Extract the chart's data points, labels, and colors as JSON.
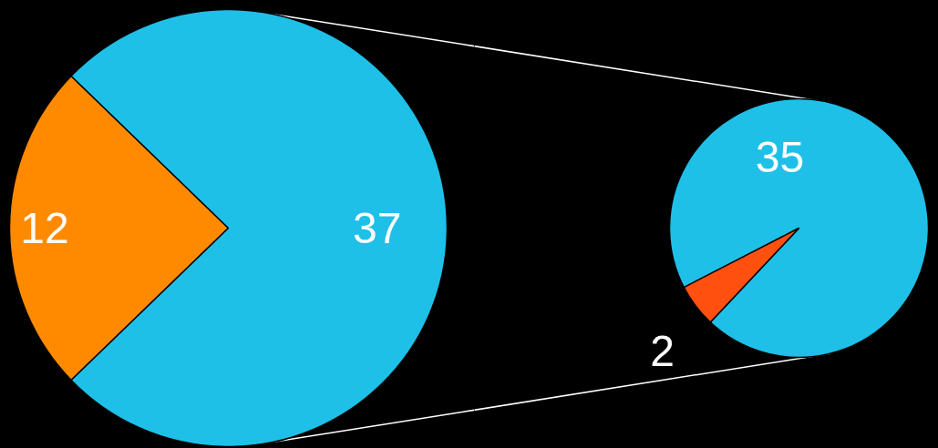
{
  "chart_data": [
    {
      "type": "pie",
      "categories": [
        null,
        null
      ],
      "values": [
        12,
        37
      ],
      "colors": [
        "#ff8a00",
        "#1ec0e8"
      ],
      "data_labels": true
    },
    {
      "type": "pie",
      "categories": [
        null,
        null
      ],
      "values": [
        35,
        2
      ],
      "colors": [
        "#1ec0e8",
        "#ff5010"
      ],
      "data_labels": true
    }
  ]
}
